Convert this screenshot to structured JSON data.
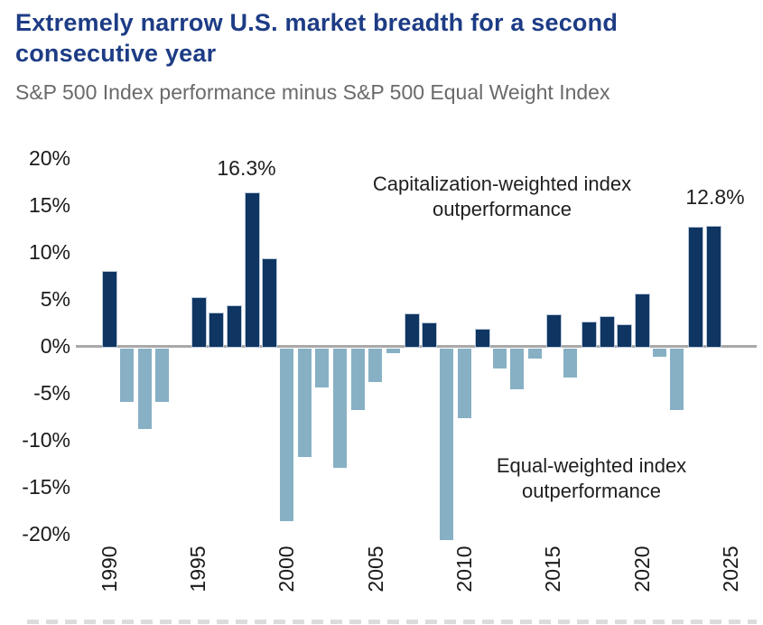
{
  "chart_data": {
    "type": "bar",
    "title": "Extremely narrow U.S. market breadth for a second consecutive year",
    "subtitle": "S&P 500 Index performance minus S&P 500 Equal Weight Index",
    "unit": "%",
    "ylim": [
      -20,
      20
    ],
    "grid": false,
    "categories": [
      1990,
      1991,
      1992,
      1993,
      1994,
      1995,
      1996,
      1997,
      1998,
      1999,
      2000,
      2001,
      2002,
      2003,
      2004,
      2005,
      2006,
      2007,
      2008,
      2009,
      2010,
      2011,
      2012,
      2013,
      2014,
      2015,
      2016,
      2017,
      2018,
      2019,
      2020,
      2021,
      2022,
      2023,
      2024
    ],
    "values": [
      8.0,
      -5.7,
      -8.6,
      -5.7,
      0.0,
      5.2,
      3.6,
      4.3,
      16.3,
      9.3,
      -18.4,
      -11.5,
      -4.1,
      -12.7,
      -6.5,
      -3.6,
      -0.5,
      3.5,
      2.5,
      -20.4,
      -7.4,
      1.8,
      -2.1,
      -4.3,
      -1.1,
      3.4,
      -3.1,
      2.6,
      3.2,
      2.3,
      5.6,
      -0.9,
      -6.5,
      12.7,
      12.8
    ],
    "yticks": [
      {
        "label": "20%",
        "value": 20
      },
      {
        "label": "15%",
        "value": 15
      },
      {
        "label": "10%",
        "value": 10
      },
      {
        "label": "5%",
        "value": 5
      },
      {
        "label": "0%",
        "value": 0
      },
      {
        "label": "-5%",
        "value": -5
      },
      {
        "label": "-10%",
        "value": -10
      },
      {
        "label": "-15%",
        "value": -15
      },
      {
        "label": "-20%",
        "value": -20
      }
    ],
    "xticks": [
      {
        "label": "1990",
        "year": 1990
      },
      {
        "label": "1995",
        "year": 1995
      },
      {
        "label": "2000",
        "year": 2000
      },
      {
        "label": "2005",
        "year": 2005
      },
      {
        "label": "2010",
        "year": 2010
      },
      {
        "label": "2015",
        "year": 2015
      },
      {
        "label": "2020",
        "year": 2020
      },
      {
        "label": "2025",
        "year": 2025
      }
    ],
    "annotations": [
      {
        "id": "peak-1998-label",
        "text": "16.3%"
      },
      {
        "id": "peak-2024-label",
        "text": "12.8%"
      },
      {
        "id": "cap-weighted-note",
        "text": "Capitalization-weighted index outperformance"
      },
      {
        "id": "equal-weighted-note",
        "text": "Equal-weighted index outperformance"
      }
    ],
    "colors": {
      "title": "#1d3c85",
      "subtitle": "#6a6a6a",
      "bar_positive": "#0f3562",
      "bar_negative": "#87b0c4",
      "axis_line": "#a9a9a9",
      "tick_text": "#1a1a1a"
    }
  }
}
